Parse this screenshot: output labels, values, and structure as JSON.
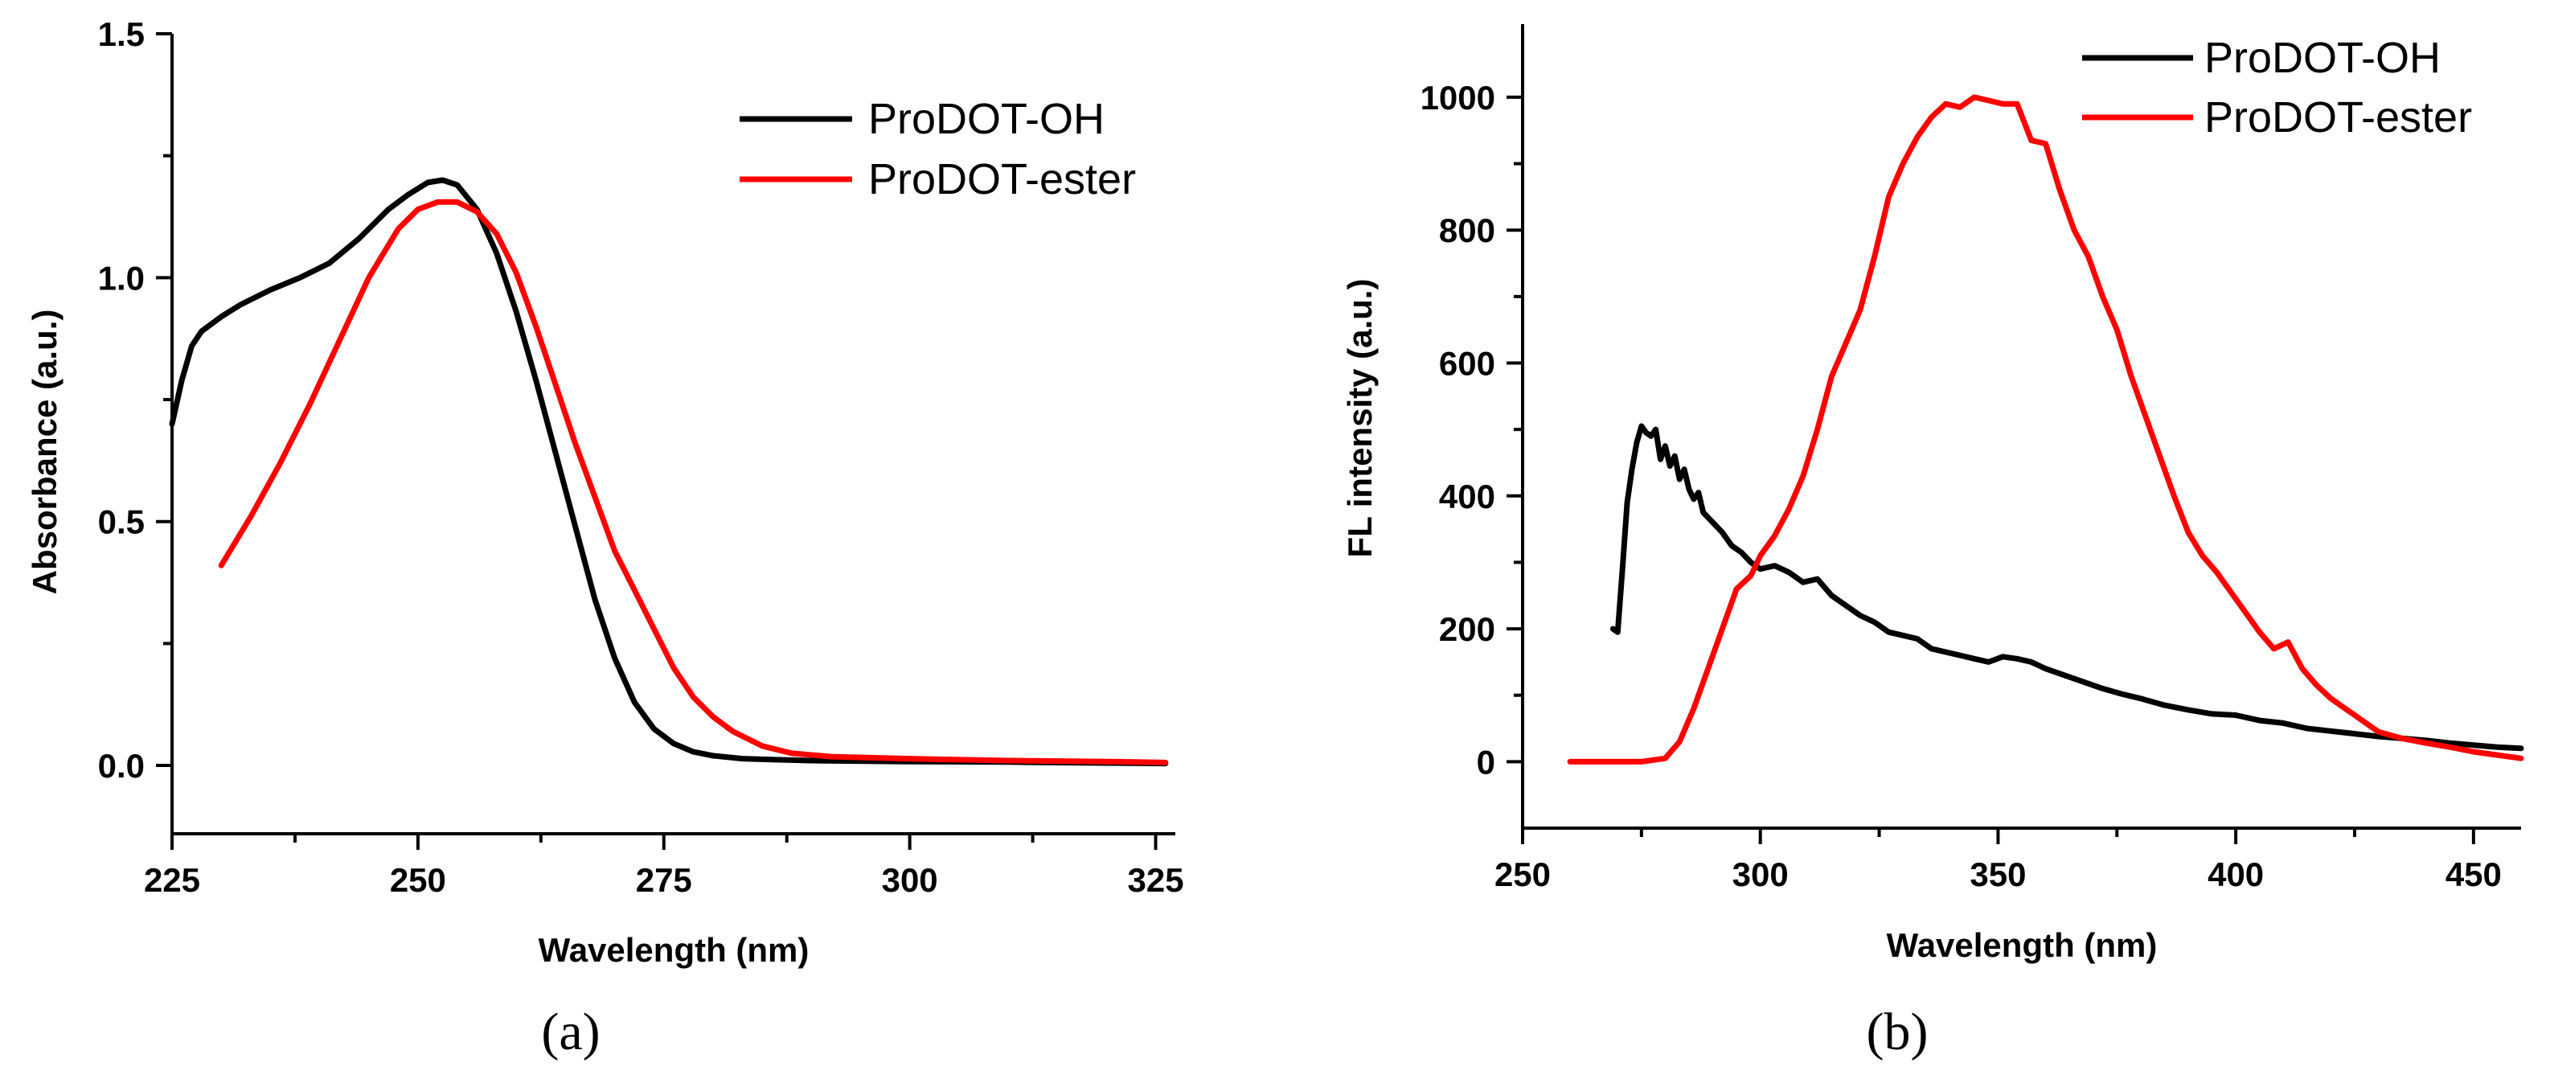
{
  "chart_data": [
    {
      "type": "line",
      "panel_label": "(a)",
      "xlabel": "Wavelength (nm)",
      "ylabel": "Absorbance (a.u.)",
      "xlim": [
        225,
        327
      ],
      "ylim": [
        -0.14,
        1.5
      ],
      "xticks": [
        225,
        250,
        275,
        300,
        325
      ],
      "xtick_labels": [
        "225",
        "250",
        "275",
        "300",
        "325"
      ],
      "yticks": [
        0.0,
        0.5,
        1.0,
        1.5
      ],
      "ytick_labels": [
        "0.0",
        "0.5",
        "1.0",
        "1.5"
      ],
      "legend_placement": "top-right",
      "series": [
        {
          "name": "ProDOT-OH",
          "color": "#000000",
          "x": [
            225,
            226,
            227,
            228,
            230,
            232,
            235,
            238,
            241,
            244,
            247,
            249,
            251,
            252.5,
            254,
            256,
            258,
            260,
            262,
            264,
            266,
            268,
            270,
            272,
            274,
            276,
            278,
            280,
            283,
            286,
            290,
            300,
            310,
            320,
            326
          ],
          "y": [
            0.7,
            0.79,
            0.86,
            0.89,
            0.92,
            0.945,
            0.975,
            1.0,
            1.03,
            1.08,
            1.14,
            1.17,
            1.195,
            1.2,
            1.19,
            1.14,
            1.05,
            0.93,
            0.79,
            0.64,
            0.49,
            0.34,
            0.22,
            0.13,
            0.075,
            0.045,
            0.028,
            0.02,
            0.014,
            0.012,
            0.01,
            0.008,
            0.007,
            0.005,
            0.004
          ]
        },
        {
          "name": "ProDOT-ester",
          "color": "#ff0000",
          "x": [
            230,
            233,
            236,
            239,
            242,
            245,
            248,
            250,
            252,
            254,
            256,
            258,
            260,
            262,
            264,
            266,
            268,
            270,
            272,
            274,
            276,
            278,
            280,
            282,
            285,
            288,
            292,
            300,
            310,
            320,
            326
          ],
          "y": [
            0.41,
            0.51,
            0.62,
            0.74,
            0.87,
            1.0,
            1.1,
            1.14,
            1.155,
            1.155,
            1.135,
            1.09,
            1.01,
            0.9,
            0.78,
            0.66,
            0.55,
            0.44,
            0.36,
            0.28,
            0.2,
            0.14,
            0.1,
            0.07,
            0.04,
            0.025,
            0.018,
            0.014,
            0.01,
            0.008,
            0.006
          ]
        }
      ]
    },
    {
      "type": "line",
      "panel_label": "(b)",
      "xlabel": "Wavelength (nm)",
      "ylabel": "FL intensity (a.u.)",
      "xlim": [
        250,
        460
      ],
      "ylim": [
        -100,
        1110
      ],
      "xticks": [
        250,
        300,
        350,
        400,
        450
      ],
      "xtick_labels": [
        "250",
        "300",
        "350",
        "400",
        "450"
      ],
      "yticks": [
        0,
        200,
        400,
        600,
        800,
        1000
      ],
      "ytick_labels": [
        "0",
        "200",
        "400",
        "600",
        "800",
        "1000"
      ],
      "legend_placement": "top-right",
      "series": [
        {
          "name": "ProDOT-OH",
          "color": "#000000",
          "x": [
            269,
            270,
            271,
            272,
            273,
            274,
            275,
            276,
            277,
            278,
            279,
            280,
            281,
            282,
            283,
            284,
            285,
            286,
            287,
            288,
            290,
            292,
            294,
            296,
            298,
            300,
            303,
            306,
            309,
            312,
            315,
            318,
            321,
            324,
            327,
            330,
            333,
            336,
            339,
            342,
            345,
            348,
            351,
            354,
            357,
            360,
            364,
            368,
            372,
            376,
            380,
            385,
            390,
            395,
            400,
            405,
            410,
            415,
            420,
            425,
            430,
            435,
            440,
            445,
            450,
            455,
            460
          ],
          "y": [
            200,
            195,
            290,
            390,
            440,
            480,
            505,
            495,
            490,
            500,
            455,
            475,
            445,
            460,
            425,
            440,
            410,
            395,
            405,
            375,
            360,
            345,
            325,
            315,
            300,
            290,
            295,
            285,
            270,
            275,
            250,
            235,
            220,
            210,
            195,
            190,
            185,
            170,
            165,
            160,
            155,
            150,
            158,
            155,
            150,
            140,
            130,
            120,
            110,
            102,
            95,
            85,
            78,
            72,
            70,
            62,
            58,
            50,
            46,
            42,
            38,
            35,
            32,
            28,
            25,
            22,
            20
          ]
        },
        {
          "name": "ProDOT-ester",
          "color": "#ff0000",
          "x": [
            260,
            265,
            270,
            275,
            280,
            283,
            286,
            289,
            292,
            295,
            298,
            300,
            303,
            306,
            309,
            312,
            315,
            318,
            321,
            324,
            327,
            330,
            333,
            336,
            339,
            342,
            345,
            348,
            351,
            354,
            357,
            360,
            363,
            366,
            369,
            372,
            375,
            378,
            381,
            384,
            387,
            390,
            393,
            396,
            399,
            402,
            405,
            408,
            411,
            414,
            417,
            420,
            423,
            426,
            430,
            435,
            440,
            445,
            450,
            455,
            460
          ],
          "y": [
            0,
            0,
            0,
            0,
            5,
            30,
            80,
            140,
            200,
            260,
            280,
            310,
            340,
            380,
            430,
            500,
            580,
            630,
            680,
            760,
            850,
            900,
            940,
            970,
            990,
            985,
            1000,
            995,
            990,
            990,
            935,
            930,
            860,
            800,
            760,
            700,
            650,
            580,
            520,
            460,
            400,
            345,
            310,
            285,
            255,
            225,
            195,
            170,
            180,
            140,
            115,
            95,
            80,
            65,
            45,
            35,
            28,
            22,
            15,
            10,
            5
          ]
        }
      ]
    }
  ]
}
